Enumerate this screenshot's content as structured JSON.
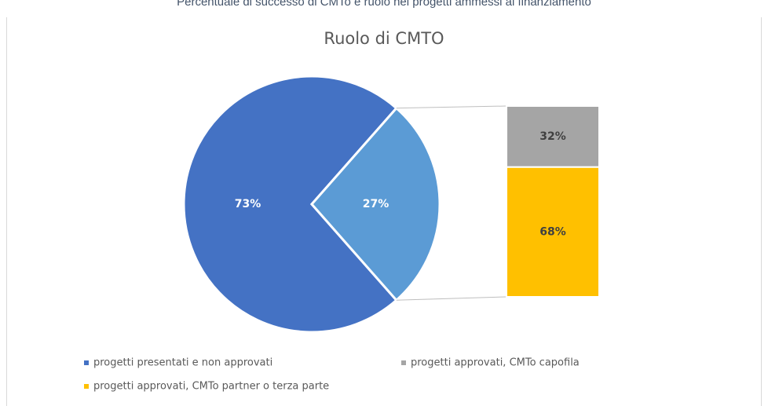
{
  "caption": "Percentuale di successo di CMTo e ruolo nei progetti ammessi al finanziamento",
  "chart_data": {
    "type": "pie",
    "title": "Ruolo di CMTO",
    "categories": [
      "progetti presentati e non approvati",
      null
    ],
    "values": [
      73,
      27
    ],
    "value_labels": [
      "73%",
      "27%"
    ],
    "colors": [
      "#4472c4",
      "#5b9bd5"
    ],
    "breakdown": {
      "categories": [
        "progetti approvati, CMTo capofila",
        "progetti approvati, CMTo partner o terza parte"
      ],
      "values": [
        32,
        68
      ],
      "value_labels": [
        "32%",
        "68%"
      ],
      "colors": [
        "#a5a5a5",
        "#ffc000"
      ]
    },
    "legend": "bottom"
  }
}
